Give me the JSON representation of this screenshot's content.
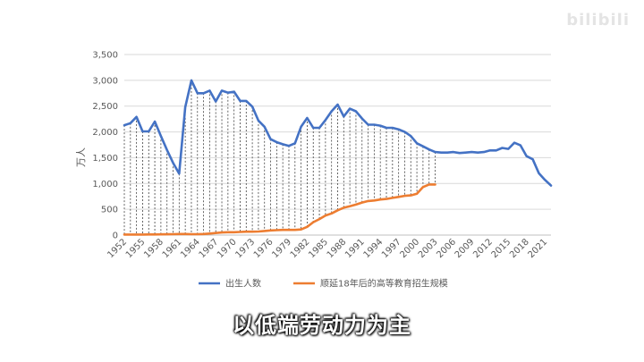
{
  "watermark": "bilibili",
  "subtitle": "以低端劳动力为主",
  "chart_data": {
    "type": "line",
    "ylabel": "万人",
    "xlabel": "",
    "ylim": [
      0,
      3500
    ],
    "yticks": [
      "0",
      "500",
      "1,000",
      "1,500",
      "2,000",
      "2,500",
      "3,000",
      "3,500"
    ],
    "xticks": [
      1952,
      1955,
      1958,
      1961,
      1964,
      1967,
      1970,
      1973,
      1976,
      1979,
      1982,
      1985,
      1988,
      1991,
      1994,
      1997,
      2000,
      2003,
      2006,
      2009,
      2012,
      2015,
      2018,
      2021
    ],
    "x_start": 1952,
    "legend_position": "bottom",
    "drop_lines": "vertical dashed lines between the two series for 1952–2003",
    "series": [
      {
        "name": "出生人数",
        "color": "#4472c4",
        "x": [
          1952,
          1953,
          1954,
          1955,
          1956,
          1957,
          1958,
          1959,
          1960,
          1961,
          1962,
          1963,
          1964,
          1965,
          1966,
          1967,
          1968,
          1969,
          1970,
          1971,
          1972,
          1973,
          1974,
          1975,
          1976,
          1977,
          1978,
          1979,
          1980,
          1981,
          1982,
          1983,
          1984,
          1985,
          1986,
          1987,
          1988,
          1989,
          1990,
          1991,
          1992,
          1993,
          1994,
          1995,
          1996,
          1997,
          1998,
          1999,
          2000,
          2001,
          2002,
          2003,
          2004,
          2005,
          2006,
          2007,
          2008,
          2009,
          2010,
          2011,
          2012,
          2013,
          2014,
          2015,
          2016,
          2017,
          2018,
          2019,
          2020,
          2021,
          2022
        ],
        "values": [
          2130,
          2170,
          2290,
          2010,
          2010,
          2200,
          1920,
          1650,
          1400,
          1190,
          2480,
          3000,
          2750,
          2750,
          2800,
          2590,
          2800,
          2760,
          2780,
          2600,
          2600,
          2490,
          2220,
          2100,
          1860,
          1800,
          1760,
          1730,
          1780,
          2100,
          2270,
          2080,
          2080,
          2230,
          2400,
          2530,
          2300,
          2450,
          2400,
          2260,
          2140,
          2140,
          2120,
          2080,
          2080,
          2050,
          2000,
          1920,
          1780,
          1720,
          1660,
          1610,
          1600,
          1600,
          1610,
          1590,
          1600,
          1610,
          1600,
          1610,
          1640,
          1640,
          1690,
          1670,
          1790,
          1740,
          1530,
          1470,
          1200,
          1070,
          960
        ]
      },
      {
        "name": "顺延18年后的高等教育招生规模",
        "color": "#ed7d31",
        "x": [
          1952,
          1953,
          1954,
          1955,
          1956,
          1957,
          1958,
          1959,
          1960,
          1961,
          1962,
          1963,
          1964,
          1965,
          1966,
          1967,
          1968,
          1969,
          1970,
          1971,
          1972,
          1973,
          1974,
          1975,
          1976,
          1977,
          1978,
          1979,
          1980,
          1981,
          1982,
          1983,
          1984,
          1985,
          1986,
          1987,
          1988,
          1989,
          1990,
          1991,
          1992,
          1993,
          1994,
          1995,
          1996,
          1997,
          1998,
          1999,
          2000,
          2001,
          2002,
          2003
        ],
        "values": [
          10,
          10,
          10,
          10,
          12,
          12,
          14,
          16,
          18,
          20,
          20,
          18,
          18,
          20,
          30,
          40,
          50,
          55,
          55,
          60,
          65,
          65,
          70,
          80,
          90,
          95,
          100,
          100,
          100,
          110,
          160,
          250,
          310,
          380,
          420,
          480,
          530,
          560,
          590,
          630,
          660,
          670,
          690,
          700,
          720,
          740,
          760,
          770,
          800,
          930,
          980,
          980
        ]
      }
    ]
  }
}
